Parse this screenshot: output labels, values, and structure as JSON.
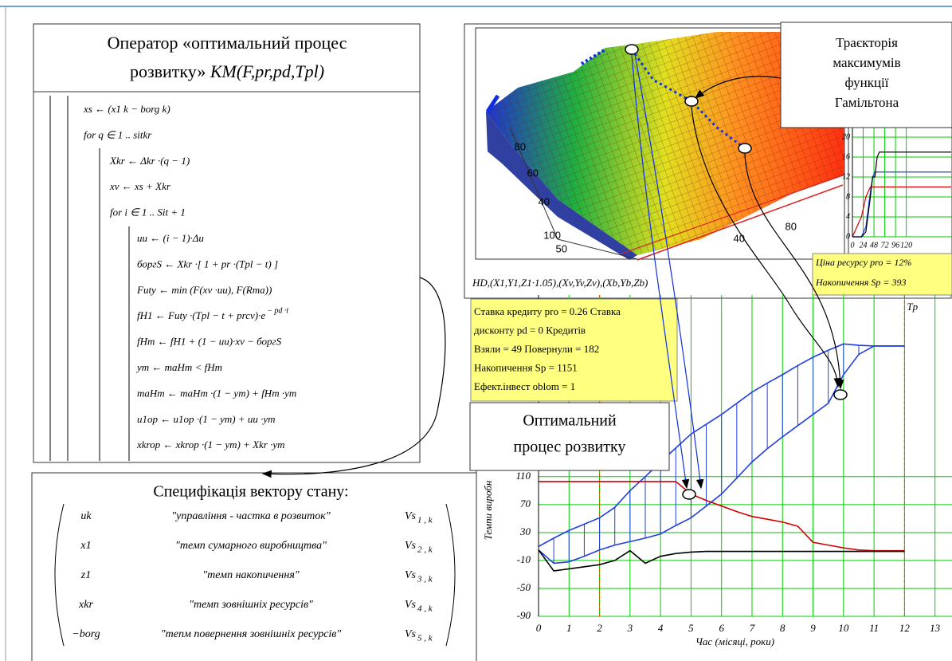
{
  "operator": {
    "title_line1": "Оператор «оптимальний процес",
    "title_line2_plain": "розвитку»",
    "title_line2_italic": "KM(F,pr,pd,Tpl)"
  },
  "code": {
    "level0": [
      "xs ← (x1 k − borg k)",
      "for  q ∈ 1 .. sitkr"
    ],
    "level1": [
      "Xkr ← Δkr ·(q − 1)",
      "xv ← xs + Xkr",
      "for  i ∈ 1 .. Sit + 1"
    ],
    "level2": [
      "uu ← (i − 1)·Δu",
      "боргS ← Xkr ·[ 1 + pr ·(Tpl − t) ]",
      "Futy ← min (F(xv ·uu), F(Rma))",
      "fH1 ← Futy ·(Tpl − t + prcv)·e",
      "fHm ← fH1 + (1 − uu)·xv − боргS",
      "ym ← maHm  <  fHm",
      "maHm ← maHm ·(1 − ym) + fHm ·ym",
      "u1op ← u1op ·(1 − ym) + uu ·ym",
      "xkrop ← xkrop ·(1 − ym) + Xkr ·ym"
    ],
    "exponent": "− pd ·t"
  },
  "specification": {
    "title": "Специфікація вектору стану:",
    "rows": [
      {
        "name": "uk",
        "description": "\"управління - частка в розвиток\"",
        "vector": "Vs",
        "index": "1 , k"
      },
      {
        "name": "x1",
        "description": "\"темп сумарного виробництва\"",
        "vector": "Vs",
        "index": "2 , k"
      },
      {
        "name": "z1",
        "description": "\"темп накопичення\"",
        "vector": "Vs",
        "index": "3 , k"
      },
      {
        "name": "xkr",
        "description": "\"темп зовнішніх ресурсів\"",
        "vector": "Vs",
        "index": "4 , k"
      },
      {
        "name": "−borg",
        "description": "\"тепм повернення зовнішніх ресурсів\"",
        "vector": "Vs",
        "index": "5 , k"
      }
    ]
  },
  "surface_plot": {
    "caption": "HD,(X1,Y1,Z1·1.05),(Xv,Yv,Zv),(Xb,Yb,Zb)",
    "axis_labels": [
      "80",
      "60",
      "40",
      "100",
      "50",
      "40",
      "80"
    ]
  },
  "callouts": {
    "trajectory": [
      "Траєкторія",
      "максимумів",
      "функції",
      "Гамільтона"
    ],
    "optimal": [
      "Оптимальний",
      "процес розвитку"
    ]
  },
  "results_box": [
    "Ставка кредиту pro = 0.26  Ставка",
    "дисконту pd = 0  Кредитів",
    "Взяли = 49  Повернули = 182",
    "Накопичення Sp = 1151",
    "Ефект.інвест oblom = 1"
  ],
  "resource_box": [
    "Ціна ресурсу pro = 12%",
    "Накопичення Sp = 393"
  ],
  "chart_data": [
    {
      "type": "line",
      "x": [
        0,
        0.5,
        1,
        1.5,
        2,
        2.5,
        3,
        3.5,
        4,
        4.5,
        5,
        5.5,
        6,
        6.5,
        7,
        7.5,
        8,
        8.5,
        9,
        9.5,
        10,
        10.5,
        11,
        11.5,
        12
      ],
      "series": [
        {
          "color": "#1f3fe0",
          "values": [
            10,
            22,
            33,
            42,
            51,
            66,
            90,
            110,
            131,
            151,
            171,
            185,
            199,
            215,
            231,
            244,
            256,
            269,
            281,
            291,
            300,
            298,
            297,
            297,
            297
          ]
        },
        {
          "color": "#1f3fe0",
          "values": [
            5,
            -14,
            -12,
            -4,
            5,
            12,
            17,
            22,
            28,
            40,
            51,
            68,
            85,
            108,
            131,
            150,
            167,
            183,
            199,
            215,
            256,
            285,
            297,
            297,
            297
          ]
        },
        {
          "color": "#d00000",
          "values": [
            103,
            103,
            103,
            103,
            103,
            103,
            103,
            103,
            103,
            103,
            85,
            76,
            68,
            60,
            53,
            49,
            45,
            39,
            16,
            12,
            8,
            5,
            4,
            4,
            4
          ]
        },
        {
          "color": "#000000",
          "values": [
            5,
            -25,
            -22,
            -19,
            -16,
            -10,
            4,
            -14,
            -4,
            0,
            2,
            3,
            3,
            3,
            3,
            3,
            3,
            3,
            3,
            3,
            3,
            3,
            3,
            3,
            3
          ]
        }
      ],
      "hatch": true,
      "xlim": [
        0,
        13.4
      ],
      "ylim": [
        -90,
        370
      ],
      "xticks": [
        0,
        1,
        2,
        3,
        4,
        5,
        6,
        7,
        8,
        9,
        10,
        11,
        12,
        13
      ],
      "yticks": [
        -90,
        -50,
        -10,
        30,
        70,
        110
      ],
      "grid": true,
      "grid_color": "#00cc00",
      "vlines": [
        2,
        12
      ],
      "vline_label": "Tp",
      "xlabel": "Час (місяці, роки)",
      "ylabel": "Темпи виробн"
    },
    {
      "type": "line",
      "x": [
        0,
        20,
        30,
        40,
        45,
        50,
        55,
        60,
        70,
        220
      ],
      "series": [
        {
          "color": "#d00000",
          "values": [
            0,
            4,
            8,
            10,
            10,
            10,
            10,
            10,
            10,
            10
          ]
        },
        {
          "color": "#1f3fe0",
          "values": [
            0,
            0,
            2,
            9,
            12,
            13,
            13,
            13,
            13,
            13
          ]
        },
        {
          "color": "#000000",
          "values": [
            0,
            0,
            1,
            8,
            12,
            12,
            16,
            17,
            17,
            17
          ]
        }
      ],
      "hatch": false,
      "xlim": [
        0,
        220
      ],
      "ylim": [
        0,
        22
      ],
      "xticks": [
        0,
        24,
        48,
        72,
        96,
        120
      ],
      "yticks": [
        0,
        4,
        8,
        12,
        16,
        20
      ],
      "grid": true,
      "grid_color": "#00cc00"
    }
  ]
}
